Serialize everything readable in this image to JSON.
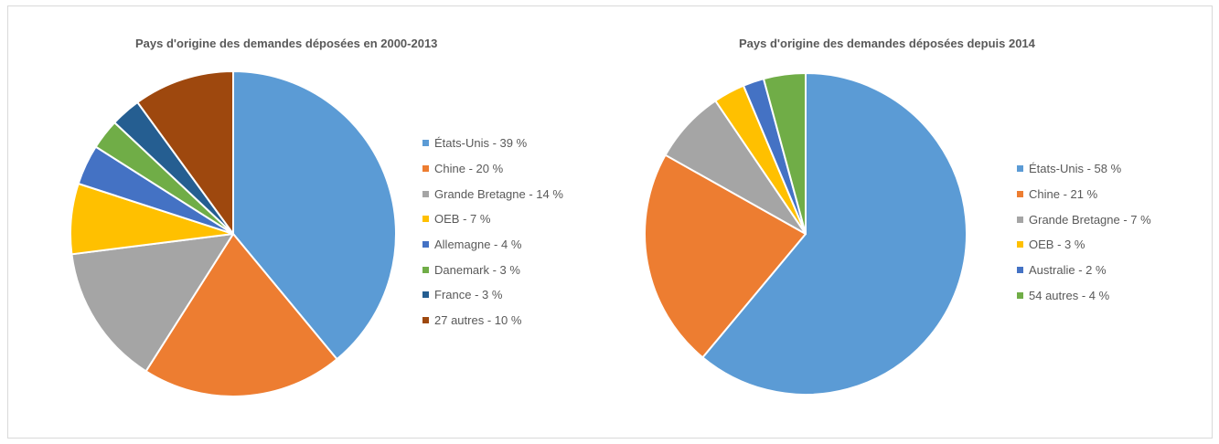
{
  "chart_data": [
    {
      "type": "pie",
      "title": "Pays d'origine des demandes déposées en 2000-2013",
      "legend_position": "right",
      "slices": [
        {
          "label": "États-Unis - 39 %",
          "value": 39,
          "color": "#5B9BD5"
        },
        {
          "label": "Chine - 20 %",
          "value": 20,
          "color": "#ED7D31"
        },
        {
          "label": "Grande Bretagne - 14 %",
          "value": 14,
          "color": "#A5A5A5"
        },
        {
          "label": "OEB - 7 %",
          "value": 7,
          "color": "#FFC000"
        },
        {
          "label": "Allemagne - 4 %",
          "value": 4,
          "color": "#4472C4"
        },
        {
          "label": "Danemark - 3 %",
          "value": 3,
          "color": "#70AD47"
        },
        {
          "label": "France - 3 %",
          "value": 3,
          "color": "#255E91"
        },
        {
          "label": "27 autres - 10 %",
          "value": 10,
          "color": "#9E480E"
        }
      ]
    },
    {
      "type": "pie",
      "title": "Pays d'origine des demandes déposées depuis 2014",
      "legend_position": "right",
      "slices": [
        {
          "label": "États-Unis - 58 %",
          "value": 58,
          "color": "#5B9BD5"
        },
        {
          "label": "Chine - 21 %",
          "value": 21,
          "color": "#ED7D31"
        },
        {
          "label": "Grande Bretagne - 7 %",
          "value": 7,
          "color": "#A5A5A5"
        },
        {
          "label": "OEB - 3 %",
          "value": 3,
          "color": "#FFC000"
        },
        {
          "label": "Australie - 2 %",
          "value": 2,
          "color": "#4472C4"
        },
        {
          "label": "54 autres - 4 %",
          "value": 4,
          "color": "#70AD47"
        }
      ]
    }
  ]
}
